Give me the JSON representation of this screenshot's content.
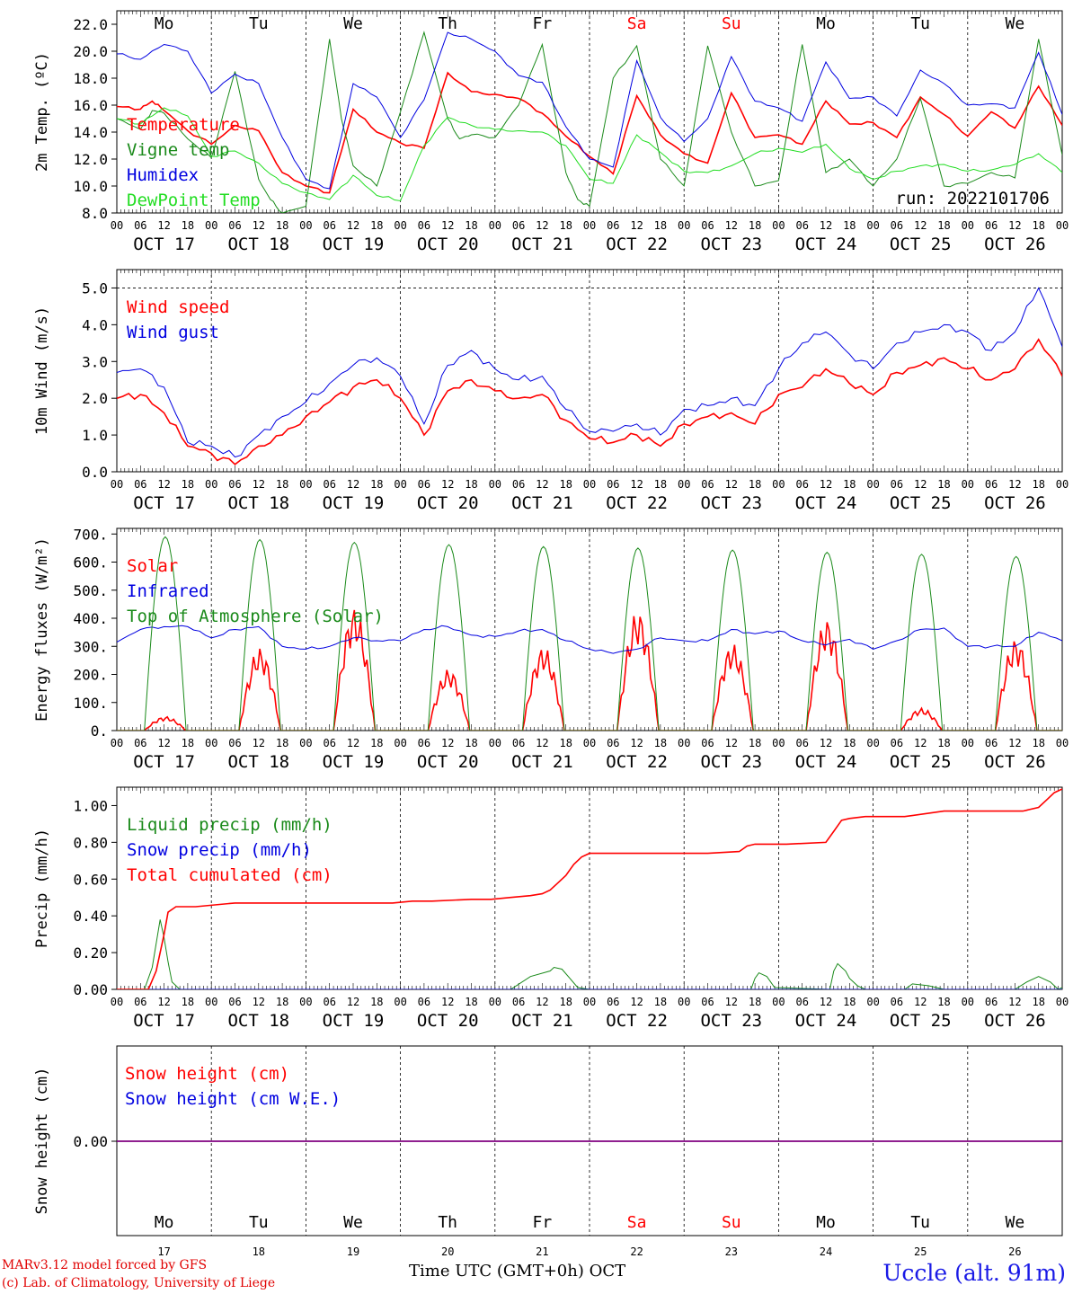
{
  "days": {
    "weekday_labels": [
      "Mo",
      "Tu",
      "We",
      "Th",
      "Fr",
      "Sa",
      "Su",
      "Mo",
      "Tu",
      "We"
    ],
    "weekend_indices": [
      5,
      6
    ],
    "date_labels": [
      "OCT 17",
      "OCT 18",
      "OCT 19",
      "OCT 20",
      "OCT 21",
      "OCT 22",
      "OCT 23",
      "OCT 24",
      "OCT 25",
      "OCT 26"
    ],
    "day_numbers": [
      "17",
      "18",
      "19",
      "20",
      "21",
      "22",
      "23",
      "24",
      "25",
      "26"
    ],
    "hour_labels": [
      "00",
      "06",
      "12",
      "18"
    ],
    "final_hour_label": "00"
  },
  "colors": {
    "red": "#ff0000",
    "green": "#1a8a1a",
    "blue": "#0000e0",
    "light_green": "#22dd22",
    "purple": "#800080",
    "weekend": "#ff0000"
  },
  "chart_data": [
    {
      "type": "line",
      "ylabel": "2m Temp. (ºC)",
      "ylim": [
        8,
        23
      ],
      "yticks": [
        "8.0",
        "10.0",
        "12.0",
        "14.0",
        "16.0",
        "18.0",
        "20.0",
        "22.0"
      ],
      "annotation": "run: 2022101706",
      "x_unit": "hours since OCT 17 00 UTC",
      "series": [
        {
          "name": "Temperature",
          "color_key": "red",
          "x": [
            0,
            6,
            9,
            12,
            18,
            24,
            30,
            36,
            42,
            48,
            54,
            60,
            66,
            72,
            78,
            84,
            90,
            96,
            102,
            108,
            114,
            120,
            126,
            132,
            138,
            144,
            150,
            156,
            162,
            168,
            174,
            180,
            186,
            192,
            198,
            204,
            210,
            216,
            222,
            228,
            234,
            240
          ],
          "y": [
            15.9,
            15.7,
            16.3,
            15.6,
            14.1,
            13.1,
            14.5,
            14.1,
            11.0,
            10.0,
            9.5,
            15.7,
            14.0,
            13.2,
            12.8,
            18.4,
            17.0,
            16.8,
            16.5,
            15.4,
            13.7,
            12.2,
            10.9,
            16.7,
            13.8,
            12.4,
            11.7,
            16.9,
            13.6,
            13.8,
            13.1,
            16.3,
            14.6,
            14.7,
            13.6,
            16.6,
            15.3,
            13.7,
            15.5,
            14.3,
            17.4,
            14.5
          ]
        },
        {
          "name": "Vigne temp",
          "color_key": "green",
          "x": [
            0,
            6,
            9,
            12,
            18,
            24,
            30,
            36,
            39,
            42,
            48,
            54,
            57,
            60,
            66,
            72,
            78,
            84,
            87,
            90,
            96,
            102,
            108,
            114,
            117,
            120,
            126,
            132,
            138,
            144,
            150,
            156,
            162,
            168,
            174,
            180,
            186,
            192,
            198,
            204,
            210,
            216,
            222,
            228,
            234,
            240
          ],
          "y": [
            15.0,
            14.2,
            15.6,
            15.4,
            13.5,
            12.1,
            18.5,
            10.5,
            9.0,
            8.0,
            8.5,
            20.9,
            15.0,
            11.5,
            10.0,
            15.5,
            21.4,
            15.0,
            13.5,
            13.8,
            13.6,
            16.0,
            20.5,
            11.0,
            9.0,
            8.5,
            18.0,
            20.4,
            12.0,
            10.0,
            20.4,
            14.0,
            10.0,
            10.4,
            20.5,
            11.0,
            12.0,
            10.0,
            12.0,
            16.5,
            10.0,
            10.2,
            11.0,
            10.6,
            20.9,
            12.3
          ]
        },
        {
          "name": "Humidex",
          "color_key": "blue",
          "x": [
            0,
            6,
            12,
            18,
            24,
            30,
            36,
            42,
            48,
            54,
            60,
            66,
            72,
            78,
            84,
            90,
            96,
            102,
            108,
            114,
            120,
            126,
            132,
            138,
            144,
            150,
            156,
            162,
            168,
            174,
            180,
            186,
            192,
            198,
            204,
            210,
            216,
            222,
            228,
            234,
            240
          ],
          "y": [
            19.8,
            19.4,
            20.5,
            20.0,
            16.9,
            18.3,
            17.6,
            13.6,
            10.5,
            9.8,
            17.6,
            16.6,
            13.6,
            16.4,
            21.4,
            20.9,
            20.0,
            18.2,
            17.7,
            14.4,
            12.0,
            11.4,
            19.3,
            15.1,
            13.3,
            15.0,
            19.6,
            16.3,
            15.8,
            14.8,
            19.2,
            16.5,
            16.6,
            15.2,
            18.6,
            17.6,
            16.0,
            16.1,
            15.8,
            19.9,
            15.3
          ]
        },
        {
          "name": "DewPoint Temp",
          "color_key": "light_green",
          "x": [
            0,
            6,
            12,
            18,
            24,
            30,
            36,
            42,
            48,
            54,
            60,
            66,
            72,
            78,
            84,
            90,
            96,
            102,
            108,
            114,
            120,
            126,
            132,
            138,
            144,
            150,
            156,
            162,
            168,
            174,
            180,
            186,
            192,
            198,
            204,
            210,
            216,
            222,
            228,
            234,
            240
          ],
          "y": [
            15.0,
            14.6,
            15.8,
            15.2,
            12.2,
            12.6,
            11.7,
            10.2,
            9.5,
            9.0,
            10.8,
            9.3,
            8.9,
            13.0,
            15.1,
            14.5,
            14.2,
            14.1,
            14.0,
            13.0,
            10.5,
            10.2,
            13.8,
            12.5,
            11.1,
            11.0,
            11.5,
            12.4,
            12.8,
            12.5,
            13.1,
            11.3,
            10.5,
            11.1,
            11.5,
            11.6,
            11.1,
            11.2,
            11.6,
            12.4,
            11.0
          ]
        }
      ]
    },
    {
      "type": "line",
      "ylabel": "10m Wind (m/s)",
      "ylim": [
        0,
        5.5
      ],
      "yticks": [
        "0.0",
        "1.0",
        "2.0",
        "3.0",
        "4.0",
        "5.0"
      ],
      "x_unit": "hours since OCT 17 00 UTC",
      "series": [
        {
          "name": "Wind speed",
          "color_key": "red",
          "x": [
            0,
            6,
            12,
            18,
            24,
            30,
            36,
            42,
            48,
            54,
            60,
            66,
            72,
            78,
            84,
            90,
            96,
            102,
            108,
            114,
            120,
            126,
            132,
            138,
            144,
            150,
            156,
            162,
            168,
            174,
            180,
            186,
            192,
            198,
            204,
            210,
            216,
            222,
            228,
            234,
            240
          ],
          "y": [
            2.0,
            2.1,
            1.6,
            0.7,
            0.5,
            0.2,
            0.7,
            1.0,
            1.5,
            1.9,
            2.3,
            2.5,
            2.0,
            1.0,
            2.2,
            2.5,
            2.2,
            2.0,
            2.1,
            1.4,
            0.9,
            0.8,
            1.0,
            0.7,
            1.3,
            1.5,
            1.6,
            1.3,
            2.1,
            2.3,
            2.8,
            2.4,
            2.1,
            2.7,
            2.9,
            3.1,
            2.8,
            2.5,
            2.8,
            3.6,
            2.6
          ]
        },
        {
          "name": "Wind gust",
          "color_key": "blue",
          "x": [
            0,
            6,
            12,
            18,
            24,
            30,
            36,
            42,
            48,
            54,
            60,
            66,
            72,
            78,
            84,
            90,
            96,
            102,
            108,
            114,
            120,
            126,
            132,
            138,
            144,
            150,
            156,
            162,
            168,
            174,
            180,
            186,
            192,
            198,
            204,
            210,
            216,
            222,
            228,
            234,
            240
          ],
          "y": [
            2.7,
            2.8,
            2.3,
            0.8,
            0.7,
            0.4,
            1.0,
            1.5,
            1.9,
            2.4,
            2.9,
            3.1,
            2.6,
            1.3,
            2.9,
            3.3,
            2.8,
            2.5,
            2.6,
            1.7,
            1.1,
            1.1,
            1.3,
            1.0,
            1.7,
            1.8,
            2.0,
            1.8,
            2.8,
            3.5,
            3.8,
            3.2,
            2.8,
            3.5,
            3.8,
            4.0,
            3.8,
            3.3,
            3.8,
            5.0,
            3.4
          ]
        }
      ]
    },
    {
      "type": "line",
      "ylabel": "Energy fluxes (W/m²)",
      "ylim": [
        0,
        720
      ],
      "yticks": [
        "0.",
        "100.",
        "200.",
        "300.",
        "400.",
        "500.",
        "600.",
        "700."
      ],
      "x_unit": "hours since OCT 17 00 UTC",
      "series": [
        {
          "name": "Solar",
          "color_key": "red",
          "peaks": [
            50,
            295,
            440,
            220,
            300,
            430,
            310,
            400,
            80,
            330
          ]
        },
        {
          "name": "Infrared",
          "color_key": "blue",
          "x": [
            0,
            6,
            12,
            18,
            24,
            30,
            36,
            42,
            48,
            54,
            60,
            66,
            72,
            78,
            84,
            90,
            96,
            102,
            108,
            114,
            120,
            126,
            132,
            138,
            144,
            150,
            156,
            162,
            168,
            174,
            180,
            186,
            192,
            198,
            204,
            210,
            216,
            222,
            228,
            234,
            240
          ],
          "y": [
            315,
            360,
            370,
            370,
            330,
            360,
            370,
            300,
            290,
            300,
            330,
            320,
            320,
            360,
            370,
            340,
            335,
            355,
            360,
            320,
            290,
            275,
            290,
            330,
            320,
            320,
            360,
            345,
            355,
            320,
            305,
            325,
            290,
            320,
            360,
            365,
            300,
            300,
            300,
            350,
            320
          ]
        },
        {
          "name": "Top of Atmosphere (Solar)",
          "color_key": "green",
          "peaks": [
            690,
            680,
            670,
            662,
            655,
            650,
            643,
            635,
            628,
            620
          ]
        }
      ]
    },
    {
      "type": "line",
      "ylabel": "Precip (mm/h)",
      "ylim": [
        0,
        1.1
      ],
      "yticks": [
        "0.00",
        "0.20",
        "0.40",
        "0.60",
        "0.80",
        "1.00"
      ],
      "x_unit": "hours since OCT 17 00 UTC",
      "series": [
        {
          "name": "Liquid precip (mm/h)",
          "color_key": "green",
          "x": [
            0,
            7,
            9,
            11,
            12,
            13,
            14,
            16,
            18,
            24,
            100,
            105,
            110,
            111,
            113,
            115,
            117,
            120,
            126,
            161,
            162,
            163,
            165,
            167,
            181,
            182,
            183,
            184,
            185,
            186,
            188,
            190,
            200,
            202,
            206,
            210,
            214,
            228,
            231,
            234,
            237,
            239,
            240
          ],
          "y": [
            0,
            0,
            0.12,
            0.38,
            0.28,
            0.15,
            0.04,
            0,
            0,
            0,
            0,
            0.07,
            0.1,
            0.12,
            0.11,
            0.06,
            0.01,
            0,
            0,
            0,
            0.06,
            0.09,
            0.07,
            0.01,
            0,
            0.1,
            0.14,
            0.12,
            0.1,
            0.06,
            0.02,
            0,
            0,
            0.03,
            0.02,
            0,
            0,
            0,
            0.04,
            0.07,
            0.04,
            0,
            0.01
          ]
        },
        {
          "name": "Snow precip (mm/h)",
          "color_key": "blue",
          "x": [
            0,
            240
          ],
          "y": [
            0,
            0
          ]
        },
        {
          "name": "Total cumulated (cm)",
          "color_key": "red",
          "x": [
            0,
            8,
            10,
            12,
            13,
            15,
            20,
            30,
            40,
            50,
            60,
            70,
            75,
            80,
            90,
            95,
            100,
            105,
            108,
            110,
            112,
            114,
            116,
            118,
            120,
            130,
            140,
            150,
            158,
            160,
            162,
            170,
            180,
            182,
            184,
            186,
            190,
            200,
            210,
            220,
            230,
            234,
            236,
            238,
            240
          ],
          "y": [
            0,
            0,
            0.1,
            0.3,
            0.42,
            0.45,
            0.45,
            0.47,
            0.47,
            0.47,
            0.47,
            0.47,
            0.48,
            0.48,
            0.49,
            0.49,
            0.5,
            0.51,
            0.52,
            0.54,
            0.58,
            0.62,
            0.68,
            0.72,
            0.74,
            0.74,
            0.74,
            0.74,
            0.75,
            0.78,
            0.79,
            0.79,
            0.8,
            0.86,
            0.92,
            0.93,
            0.94,
            0.94,
            0.97,
            0.97,
            0.97,
            0.99,
            1.03,
            1.07,
            1.09
          ]
        }
      ]
    },
    {
      "type": "line",
      "ylabel": "Snow height (cm)",
      "yticks": [
        "0.00"
      ],
      "x_unit": "hours since OCT 17 00 UTC",
      "series": [
        {
          "name": "Snow height (cm)",
          "color_key": "red",
          "x": [
            0,
            240
          ],
          "y": [
            0,
            0
          ]
        },
        {
          "name": "Snow height (cm W.E.)",
          "color_key": "blue",
          "x": [
            0,
            240
          ],
          "y": [
            0,
            0
          ]
        }
      ],
      "xlabel_left": "Time UTC (GMT+0h)",
      "xlabel_right": "OCT"
    }
  ],
  "footer": {
    "credit_line1": "MARv3.12 model forced by GFS",
    "credit_line2": "(c) Lab. of Climatology, University of Liege",
    "station": "Uccle (alt. 91m)"
  }
}
